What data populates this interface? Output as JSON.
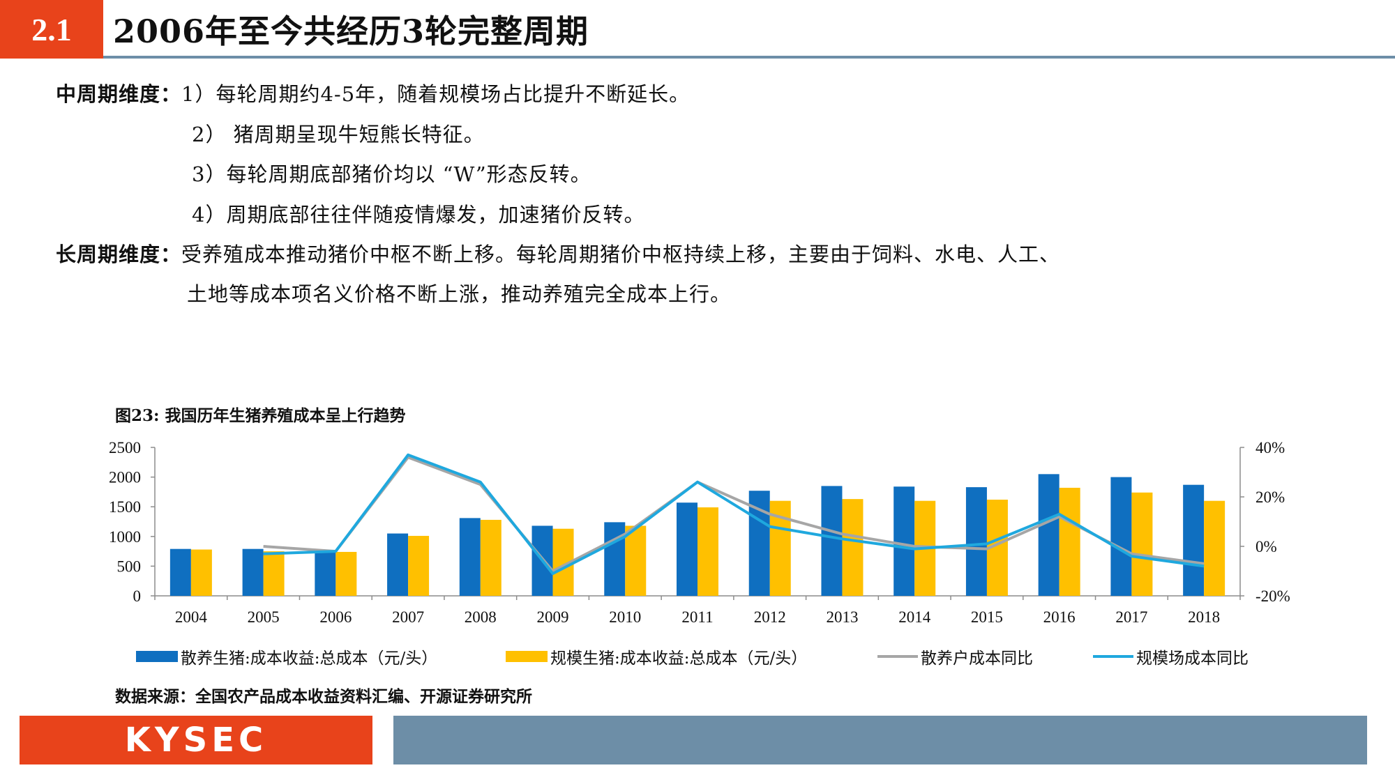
{
  "header": {
    "section": "2.1",
    "title": "2006年至今共经历3轮完整周期"
  },
  "body": {
    "mid_label": "中周期维度：",
    "mid_points": [
      "1）每轮周期约4-5年，随着规模场占比提升不断延长。",
      "2） 猪周期呈现牛短熊长特征。",
      "3）每轮周期底部猪价均以 “W”形态反转。",
      "4）周期底部往往伴随疫情爆发，加速猪价反转。"
    ],
    "long_label": "长周期维度：",
    "long_line1": "受养殖成本推动猪价中枢不断上移。每轮周期猪价中枢持续上移，主要由于饲料、水电、人工、",
    "long_line2": "土地等成本项名义价格不断上涨，推动养殖完全成本上行。"
  },
  "figure": {
    "caption": "图23:  我国历年生猪养殖成本呈上行趋势",
    "source": "数据来源：全国农产品成本收益资料汇编、开源证券研究所"
  },
  "chart_data": {
    "type": "bar",
    "categories": [
      "2004",
      "2005",
      "2006",
      "2007",
      "2008",
      "2009",
      "2010",
      "2011",
      "2012",
      "2013",
      "2014",
      "2015",
      "2016",
      "2017",
      "2018"
    ],
    "left_axis": {
      "ylim": [
        0,
        2500
      ],
      "ticks": [
        "0",
        "500",
        "1000",
        "1500",
        "2000",
        "2500"
      ]
    },
    "right_axis": {
      "ylim": [
        -20,
        40
      ],
      "ticks": [
        "-20%",
        "0%",
        "20%",
        "40%"
      ]
    },
    "series": [
      {
        "name": "散养生猪:成本收益:总成本（元/头）",
        "kind": "bar",
        "axis": "left",
        "color": "#0f6fc0",
        "values": [
          790,
          790,
          770,
          1050,
          1310,
          1180,
          1240,
          1570,
          1770,
          1850,
          1840,
          1830,
          2050,
          2000,
          1870
        ]
      },
      {
        "name": "规模生猪:成本收益:总成本（元/头）",
        "kind": "bar",
        "axis": "left",
        "color": "#ffc000",
        "values": [
          780,
          750,
          740,
          1010,
          1280,
          1130,
          1180,
          1490,
          1600,
          1630,
          1600,
          1620,
          1820,
          1740,
          1600
        ]
      },
      {
        "name": "散养户成本同比",
        "kind": "line",
        "axis": "right",
        "color": "#a6a6a6",
        "values": [
          null,
          0,
          -2,
          36,
          25,
          -10,
          5,
          26,
          13,
          5,
          0,
          -1,
          12,
          -3,
          -7
        ]
      },
      {
        "name": "规模场成本同比",
        "kind": "line",
        "axis": "right",
        "color": "#1fa8de",
        "values": [
          null,
          -3,
          -2,
          37,
          26,
          -11,
          4,
          26,
          8,
          3,
          -1,
          1,
          13,
          -4,
          -8
        ]
      }
    ]
  }
}
